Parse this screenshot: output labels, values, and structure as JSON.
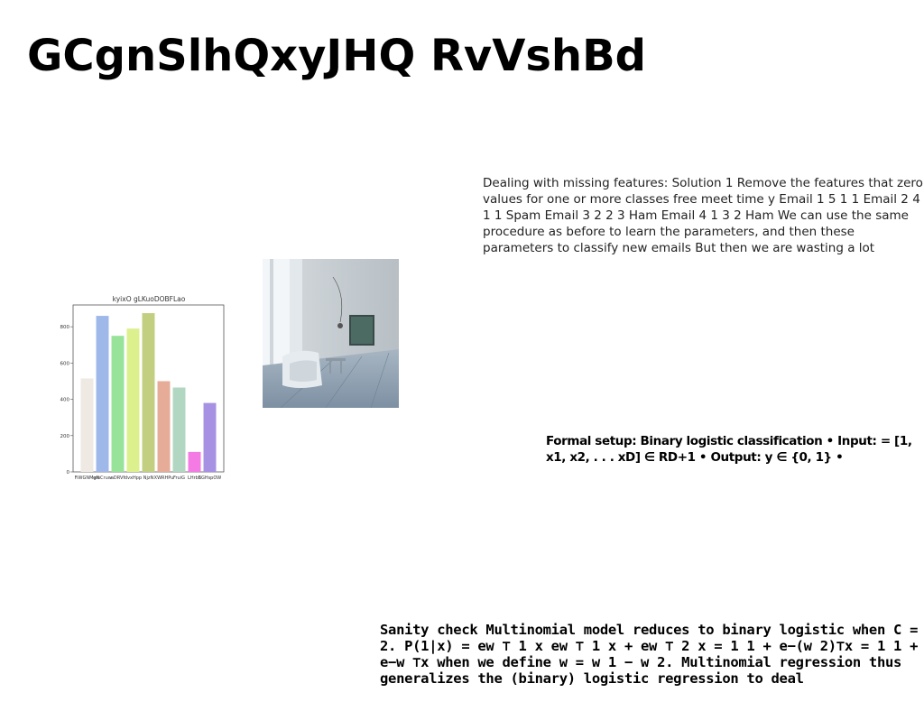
{
  "title": "GCgnSlhQxyJHQ RvVshBd",
  "paragraphs": {
    "missing_features": "Dealing with missing features: Solution 1 Remove the features that zero values for one or more classes free meet time y Email 1 5 1 1 Email 2 4 1 1 Spam Email 3 2 2 3 Ham Email 4 1 3 2 Ham We can use the same procedure as before to learn the parameters, and then these parameters to classify new emails But then we are wasting a lot",
    "formal_setup": "Formal setup: Binary logistic classification • Input: = [1, x1, x2, . . . xD] ∈ RD+1 • Output: y ∈ {0, 1} •",
    "sanity_check": "Sanity check Multinomial model reduces to binary logistic when C = 2. P(1|x) = ew ⊤ 1 x ew ⊤ 1 x + ew ⊤ 2 x = 1 1 + e−(w 2)⊤x = 1 1 + e−w ⊤x when we define w = w 1 − w 2. Multinomial regression thus generalizes the (binary) logistic regression to deal"
  },
  "chart_data": {
    "type": "bar",
    "title": "kyixO gLKuoDOBFLao",
    "categories": [
      "FiWGNMgN",
      "emCruw",
      "aDRVf",
      "dvxHpp",
      "NjzN",
      "XWRHPu",
      "FruiG",
      "LHrbE",
      "SGHspOW"
    ],
    "values": [
      515,
      860,
      750,
      790,
      875,
      500,
      465,
      110,
      380
    ],
    "colors": [
      "#efe9e4",
      "#9fb8ea",
      "#98e39a",
      "#dcf08d",
      "#c3cf80",
      "#e6ac98",
      "#b1d7c2",
      "#f37be3",
      "#a691e2"
    ],
    "ylim": [
      0,
      920
    ],
    "yticks": [
      0,
      200,
      400,
      600,
      800
    ],
    "grid": false
  },
  "photo": {
    "subject": "interior-room-photo"
  }
}
